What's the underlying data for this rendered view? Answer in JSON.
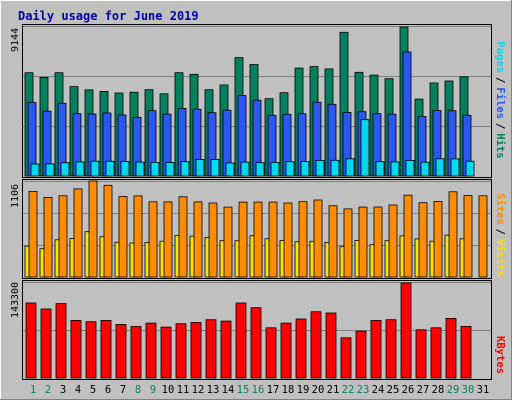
{
  "chart_data": [
    {
      "type": "bar",
      "title": "Daily usage for June 2019",
      "categories": [
        "1",
        "2",
        "3",
        "4",
        "5",
        "6",
        "7",
        "8",
        "9",
        "10",
        "11",
        "12",
        "13",
        "14",
        "15",
        "16",
        "17",
        "18",
        "19",
        "20",
        "21",
        "22",
        "23",
        "24",
        "25",
        "26",
        "27",
        "28",
        "29",
        "30",
        "31"
      ],
      "weekend_categories": [
        "1",
        "2",
        "8",
        "9",
        "15",
        "16",
        "22",
        "23",
        "29",
        "30"
      ],
      "ylim": [
        0,
        9144
      ],
      "y_tick_label": "9144",
      "series": [
        {
          "name": "Hits",
          "color": "#00805c",
          "values": [
            6300,
            6010,
            6300,
            5450,
            5250,
            5160,
            5060,
            5110,
            5260,
            5010,
            6300,
            6200,
            5260,
            5550,
            7220,
            6800,
            4710,
            5080,
            6580,
            6670,
            6530,
            8760,
            6320,
            6150,
            5930,
            9080,
            4690,
            5670,
            5790,
            6050,
            0
          ]
        },
        {
          "name": "Files",
          "color": "#2a58f0",
          "values": [
            4480,
            3950,
            4430,
            3800,
            3780,
            3840,
            3720,
            3580,
            3980,
            3770,
            4120,
            4070,
            3860,
            4010,
            4900,
            4620,
            3700,
            3760,
            3800,
            4500,
            4370,
            3870,
            3920,
            3800,
            3770,
            7560,
            3630,
            3990,
            3980,
            3700,
            0
          ]
        },
        {
          "name": "Pages",
          "color": "#00d8f0",
          "values": [
            730,
            740,
            810,
            860,
            900,
            900,
            880,
            850,
            830,
            820,
            870,
            1000,
            1000,
            800,
            850,
            810,
            830,
            870,
            880,
            950,
            960,
            1050,
            3430,
            870,
            860,
            950,
            840,
            1050,
            1040,
            900,
            0
          ]
        }
      ],
      "axis_labels": {
        "pages": "Pages",
        "files": "Files",
        "hits": "Hits",
        "sep": "/"
      }
    },
    {
      "type": "bar",
      "ylim": [
        0,
        1106
      ],
      "y_tick_label": "1106",
      "series": [
        {
          "name": "Sites",
          "color": "#ff8c00",
          "values": [
            986,
            917,
            935,
            1015,
            1106,
            1057,
            928,
            934,
            866,
            865,
            924,
            865,
            852,
            805,
            863,
            863,
            863,
            853,
            867,
            887,
            820,
            785,
            805,
            807,
            829,
            942,
            856,
            870,
            981,
            938,
            936
          ]
        },
        {
          "name": "Visits",
          "color": "#ffe000",
          "values": [
            356,
            326,
            428,
            444,
            522,
            464,
            400,
            392,
            397,
            413,
            478,
            470,
            454,
            418,
            417,
            475,
            441,
            422,
            406,
            411,
            399,
            349,
            420,
            372,
            418,
            474,
            439,
            412,
            481,
            439,
            0
          ]
        }
      ],
      "axis_labels": {
        "sites": "Sites",
        "visits": "Visits",
        "sep": "/"
      }
    },
    {
      "type": "bar",
      "ylim": [
        0,
        143300
      ],
      "y_tick_label": "143300",
      "series": [
        {
          "name": "KBytes",
          "color": "#ff0000",
          "values": [
            112000,
            103000,
            111000,
            86000,
            84000,
            86000,
            80000,
            77000,
            82000,
            76000,
            81000,
            83000,
            87000,
            85000,
            112000,
            105000,
            75000,
            82000,
            88000,
            99000,
            97000,
            60000,
            70000,
            86000,
            87000,
            142000,
            72000,
            75000,
            89000,
            77000,
            0
          ]
        }
      ],
      "axis_labels": {
        "kbytes": "KBytes"
      }
    }
  ]
}
